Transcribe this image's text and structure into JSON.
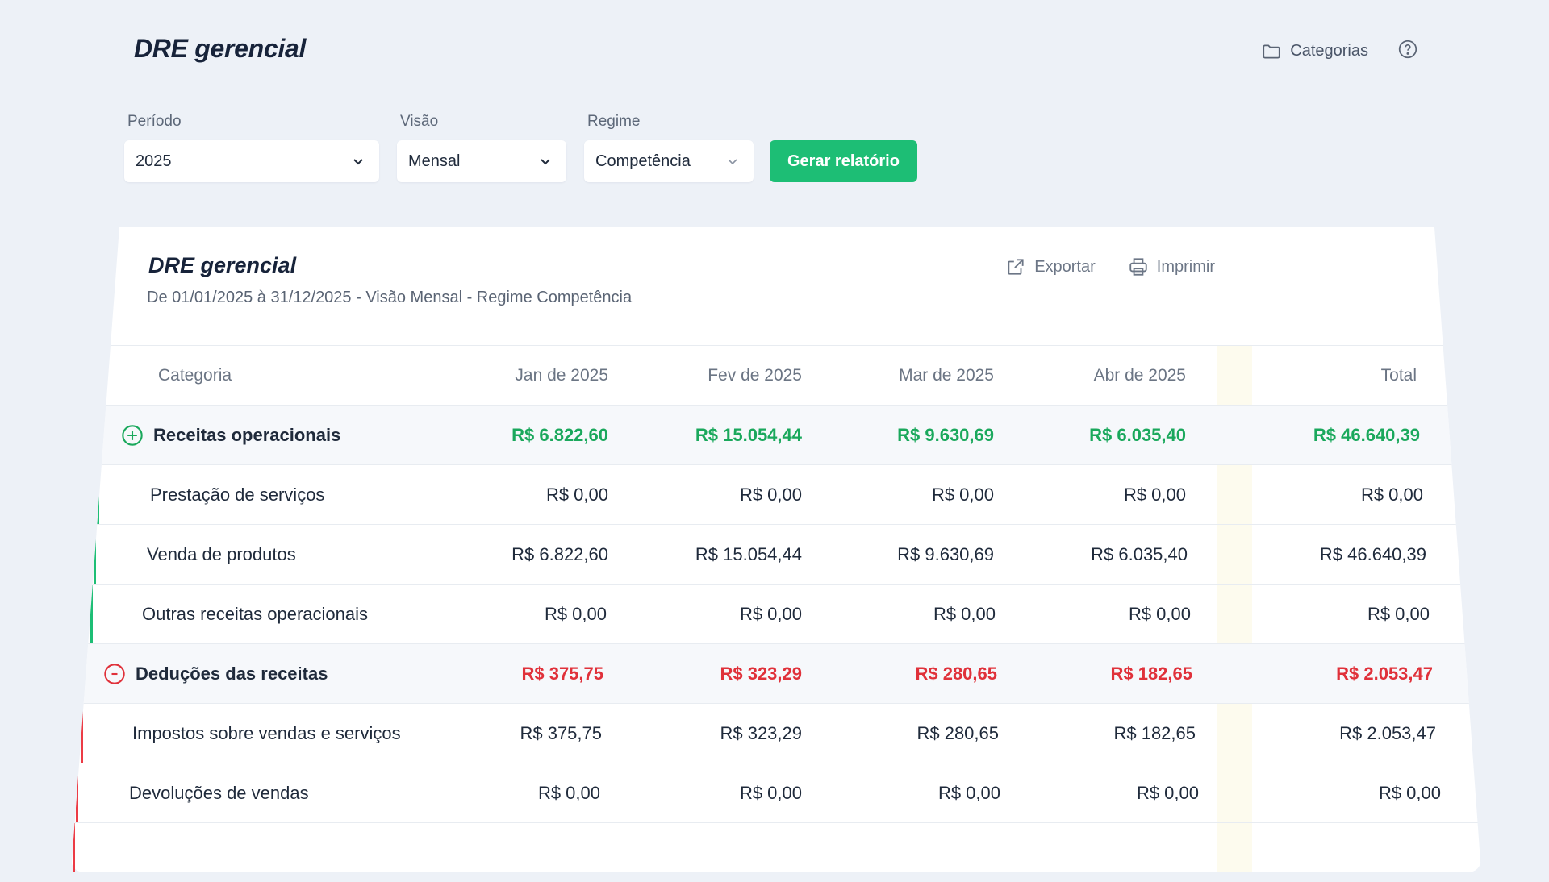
{
  "header": {
    "title": "DRE gerencial",
    "categories_label": "Categorias"
  },
  "filters": {
    "periodo": {
      "label": "Período",
      "value": "2025"
    },
    "visao": {
      "label": "Visão",
      "value": "Mensal"
    },
    "regime": {
      "label": "Regime",
      "value": "Competência"
    },
    "generate_label": "Gerar relatório"
  },
  "report": {
    "title": "DRE gerencial",
    "subtitle": "De 01/01/2025 à 31/12/2025  -  Visão Mensal  -  Regime Competência",
    "export_label": "Exportar",
    "print_label": "Imprimir",
    "columns": [
      "Categoria",
      "Jan de 2025",
      "Fev de 2025",
      "Mar de 2025",
      "Abr de 2025",
      "Total"
    ],
    "rows": [
      {
        "name": "Receitas operacionais",
        "values": [
          "R$ 6.822,60",
          "R$ 15.054,44",
          "R$ 9.630,69",
          "R$ 6.035,40",
          "R$ 46.640,39"
        ]
      },
      {
        "name": "Prestação de serviços",
        "values": [
          "R$ 0,00",
          "R$ 0,00",
          "R$ 0,00",
          "R$ 0,00",
          "R$ 0,00"
        ]
      },
      {
        "name": "Venda de produtos",
        "values": [
          "R$ 6.822,60",
          "R$ 15.054,44",
          "R$ 9.630,69",
          "R$ 6.035,40",
          "R$ 46.640,39"
        ]
      },
      {
        "name": "Outras receitas operacionais",
        "values": [
          "R$ 0,00",
          "R$ 0,00",
          "R$ 0,00",
          "R$ 0,00",
          "R$ 0,00"
        ]
      },
      {
        "name": "Deduções das receitas",
        "values": [
          "R$ 375,75",
          "R$ 323,29",
          "R$ 280,65",
          "R$ 182,65",
          "R$ 2.053,47"
        ]
      },
      {
        "name": "Impostos sobre vendas e serviços",
        "values": [
          "R$ 375,75",
          "R$ 323,29",
          "R$ 280,65",
          "R$ 182,65",
          "R$ 2.053,47"
        ]
      },
      {
        "name": "Devoluções de vendas",
        "values": [
          "R$ 0,00",
          "R$ 0,00",
          "R$ 0,00",
          "R$ 0,00",
          "R$ 0,00"
        ]
      }
    ]
  },
  "colors": {
    "positive": "#1aa85c",
    "negative": "#e0313a",
    "primary_button": "#1dbe75"
  },
  "icons": {
    "categories": "folder-icon",
    "help": "help-icon",
    "export": "external-link-icon",
    "print": "printer-icon",
    "dropdown": "chevron-down-icon",
    "expand": "plus-circle-icon",
    "collapse": "minus-circle-icon"
  }
}
